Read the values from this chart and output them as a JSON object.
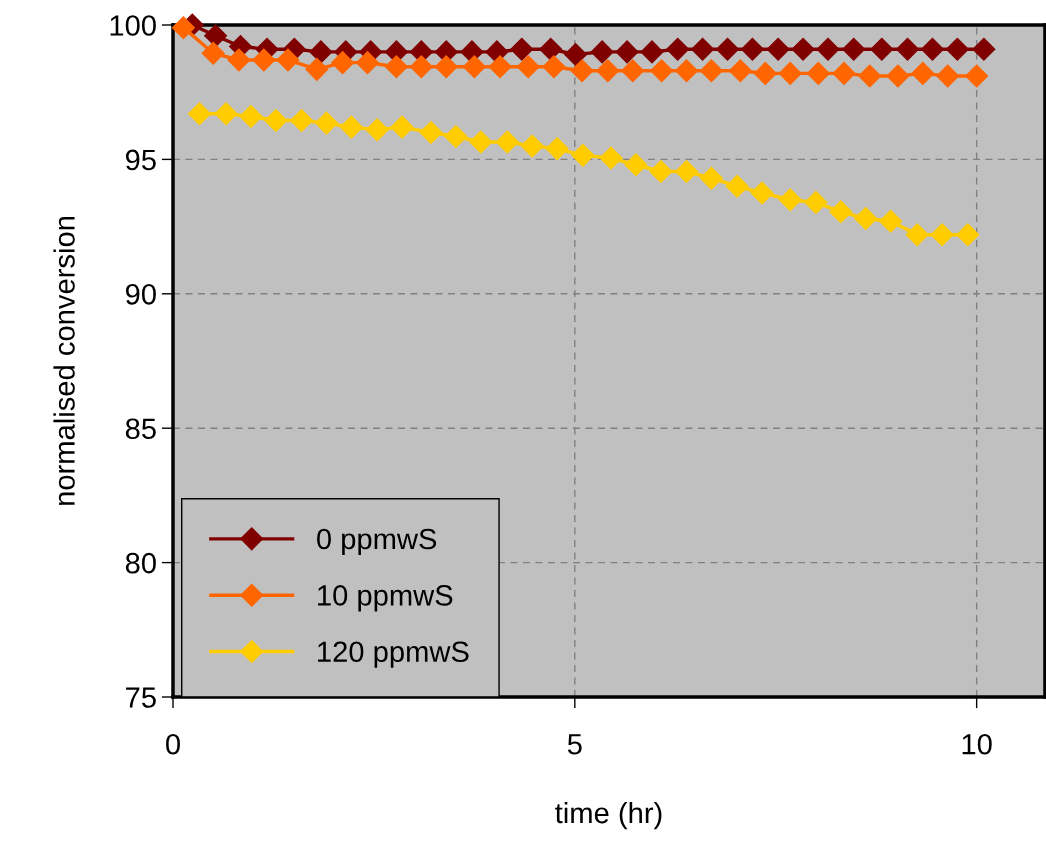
{
  "chart_data": {
    "type": "line",
    "xlabel": "time (hr)",
    "ylabel": "normalised conversion",
    "xlim": [
      0,
      10.85
    ],
    "xticks": [
      0,
      5,
      10
    ],
    "ylim": [
      75,
      100
    ],
    "yticks": [
      75,
      80,
      85,
      90,
      95,
      100
    ],
    "grid": true,
    "legend": "bottom left",
    "marker": "diamond",
    "line_style": "solid",
    "series": [
      {
        "name": "0 ppmwS",
        "color": "#800000",
        "x": [
          0.24,
          0.53,
          0.84,
          1.17,
          1.51,
          1.84,
          2.15,
          2.46,
          2.78,
          3.09,
          3.4,
          3.72,
          4.03,
          4.34,
          4.7,
          5.01,
          5.34,
          5.65,
          5.96,
          6.28,
          6.59,
          6.9,
          7.21,
          7.53,
          7.84,
          8.15,
          8.47,
          8.82,
          9.14,
          9.45,
          9.76,
          10.09
        ],
        "values": [
          100.0,
          99.6,
          99.2,
          99.1,
          99.1,
          99.0,
          99.0,
          99.0,
          99.0,
          99.0,
          99.0,
          99.0,
          99.0,
          99.1,
          99.1,
          98.9,
          99.0,
          99.0,
          99.0,
          99.1,
          99.1,
          99.1,
          99.1,
          99.1,
          99.1,
          99.1,
          99.1,
          99.1,
          99.1,
          99.1,
          99.1,
          99.1
        ]
      },
      {
        "name": "10 ppmwS",
        "color": "#ff6600",
        "x": [
          0.13,
          0.5,
          0.82,
          1.13,
          1.43,
          1.79,
          2.11,
          2.42,
          2.78,
          3.09,
          3.4,
          3.75,
          4.07,
          4.42,
          4.74,
          5.09,
          5.41,
          5.72,
          6.08,
          6.39,
          6.7,
          7.06,
          7.37,
          7.68,
          8.03,
          8.35,
          8.67,
          9.02,
          9.33,
          9.64,
          10.0
        ],
        "values": [
          99.9,
          98.95,
          98.7,
          98.7,
          98.7,
          98.35,
          98.6,
          98.6,
          98.45,
          98.45,
          98.45,
          98.45,
          98.45,
          98.45,
          98.45,
          98.3,
          98.3,
          98.3,
          98.3,
          98.3,
          98.3,
          98.3,
          98.2,
          98.2,
          98.2,
          98.2,
          98.1,
          98.1,
          98.2,
          98.1,
          98.1
        ]
      },
      {
        "name": "120 ppmwS",
        "color": "#ffcc00",
        "x": [
          0.33,
          0.66,
          0.97,
          1.28,
          1.6,
          1.91,
          2.22,
          2.54,
          2.85,
          3.21,
          3.52,
          3.83,
          4.16,
          4.47,
          4.78,
          5.1,
          5.45,
          5.76,
          6.07,
          6.39,
          6.7,
          7.02,
          7.33,
          7.68,
          8.0,
          8.31,
          8.62,
          8.93,
          9.26,
          9.57,
          9.89
        ],
        "values": [
          96.7,
          96.7,
          96.6,
          96.45,
          96.45,
          96.35,
          96.2,
          96.1,
          96.2,
          96.0,
          95.85,
          95.65,
          95.65,
          95.5,
          95.4,
          95.15,
          95.05,
          94.8,
          94.55,
          94.55,
          94.3,
          94.0,
          93.75,
          93.5,
          93.4,
          93.05,
          92.8,
          92.7,
          92.2,
          92.2,
          92.2
        ]
      }
    ]
  }
}
